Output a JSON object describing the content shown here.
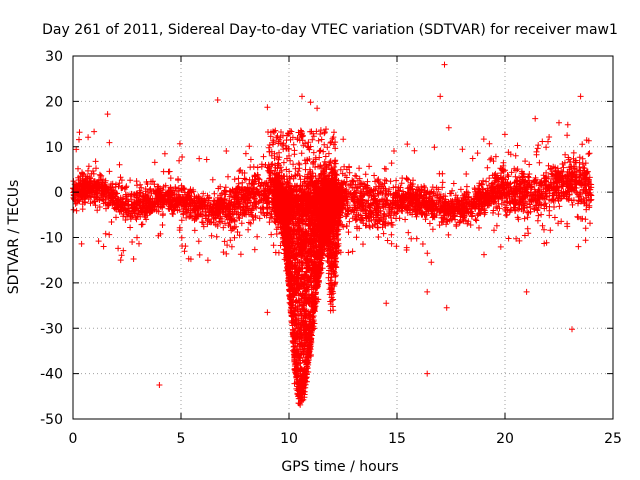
{
  "chart_data": {
    "type": "scatter",
    "title": "Day 261 of 2011, Sidereal Day-to-day VTEC variation (SDTVAR) for receiver maw1",
    "xlabel": "GPS time / hours",
    "ylabel": "SDTVAR / TECUs",
    "xlim": [
      0,
      25
    ],
    "ylim": [
      -50,
      30
    ],
    "xticks": [
      0,
      5,
      10,
      15,
      20,
      25
    ],
    "yticks": [
      -50,
      -40,
      -30,
      -20,
      -10,
      0,
      10,
      20,
      30
    ],
    "xtick_labels": [
      "0",
      "5",
      "10",
      "15",
      "20",
      "25"
    ],
    "ytick_labels": [
      "-50",
      "-40",
      "-30",
      "-20",
      "-10",
      "0",
      "10",
      "20",
      "30"
    ],
    "grid": true,
    "marker": "+",
    "color": "#ff0000",
    "series": [
      {
        "name": "SDTVAR",
        "note": "Dense scatter; baseline hovers around -3..+3 TECU with a deep trough to about -45 TECU near 10.5 h.",
        "outliers": [
          {
            "x": 1.6,
            "y": 17.2
          },
          {
            "x": 0.3,
            "y": 13.2
          },
          {
            "x": 4.0,
            "y": -42.5
          },
          {
            "x": 6.7,
            "y": 20.3
          },
          {
            "x": 9.0,
            "y": 18.7
          },
          {
            "x": 9.0,
            "y": -26.5
          },
          {
            "x": 10.6,
            "y": 21.1
          },
          {
            "x": 11.0,
            "y": 19.8
          },
          {
            "x": 11.3,
            "y": 18.5
          },
          {
            "x": 14.5,
            "y": -24.5
          },
          {
            "x": 16.4,
            "y": -22.0
          },
          {
            "x": 16.4,
            "y": -40.0
          },
          {
            "x": 17.0,
            "y": 21.1
          },
          {
            "x": 17.2,
            "y": 28.1
          },
          {
            "x": 17.3,
            "y": -25.5
          },
          {
            "x": 17.4,
            "y": 14.2
          },
          {
            "x": 21.0,
            "y": -22.0
          },
          {
            "x": 21.4,
            "y": 16.2
          },
          {
            "x": 22.5,
            "y": 15.3
          },
          {
            "x": 23.1,
            "y": -30.2
          },
          {
            "x": 23.5,
            "y": 21.1
          },
          {
            "x": 23.4,
            "y": -12.0
          },
          {
            "x": 0.1,
            "y": 0.9
          },
          {
            "x": 2.2,
            "y": 3.3
          }
        ]
      }
    ]
  }
}
